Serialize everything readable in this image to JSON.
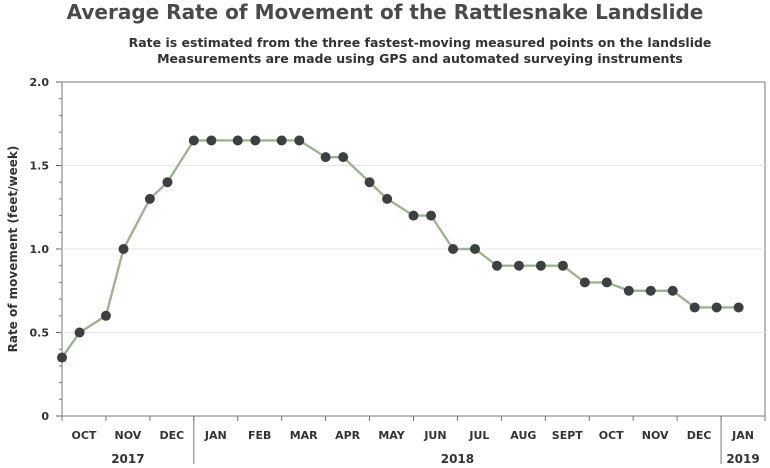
{
  "chart_data": {
    "type": "line",
    "title": "Average Rate of Movement of the Rattlesnake Landslide",
    "subtitles": [
      "Rate is estimated from the three fastest-moving measured points on the landslide",
      "Measurements are made using GPS and automated surveying instruments"
    ],
    "xlabel": "",
    "ylabel": "Rate of movement (feet/week)",
    "ylim": [
      0,
      2.0
    ],
    "yticks": [
      "0",
      "0.5",
      "1.0",
      "1.5",
      "2.0"
    ],
    "xlim": [
      0,
      16
    ],
    "month_labels": [
      {
        "label": "OCT",
        "pos": 0.5
      },
      {
        "label": "NOV",
        "pos": 1.5
      },
      {
        "label": "DEC",
        "pos": 2.5
      },
      {
        "label": "JAN",
        "pos": 3.5
      },
      {
        "label": "FEB",
        "pos": 4.5
      },
      {
        "label": "MAR",
        "pos": 5.5
      },
      {
        "label": "APR",
        "pos": 6.5
      },
      {
        "label": "MAY",
        "pos": 7.5
      },
      {
        "label": "JUN",
        "pos": 8.5
      },
      {
        "label": "JUL",
        "pos": 9.5
      },
      {
        "label": "AUG",
        "pos": 10.5
      },
      {
        "label": "SEPT",
        "pos": 11.5
      },
      {
        "label": "OCT",
        "pos": 12.5
      },
      {
        "label": "NOV",
        "pos": 13.5
      },
      {
        "label": "DEC",
        "pos": 14.5
      },
      {
        "label": "JAN",
        "pos": 15.5
      }
    ],
    "year_labels": [
      {
        "label": "2017",
        "from": 0,
        "to": 3
      },
      {
        "label": "2018",
        "from": 3,
        "to": 15
      },
      {
        "label": "2019",
        "from": 15,
        "to": 16
      }
    ],
    "grid": "horizontal",
    "series": [
      {
        "line_color": "#9fb394",
        "marker_color": "#3d3f40",
        "x": [
          0,
          0.4,
          1.0,
          1.4,
          2.0,
          2.4,
          3.0,
          3.4,
          4.0,
          4.4,
          5.0,
          5.4,
          6.0,
          6.4,
          7.0,
          7.4,
          8.0,
          8.4,
          8.9,
          9.4,
          9.9,
          10.4,
          10.9,
          11.4,
          11.9,
          12.4,
          12.9,
          13.4,
          13.9,
          14.4,
          14.9,
          15.4
        ],
        "y": [
          0.35,
          0.5,
          0.6,
          1.0,
          1.3,
          1.4,
          1.65,
          1.65,
          1.65,
          1.65,
          1.65,
          1.65,
          1.55,
          1.55,
          1.4,
          1.3,
          1.2,
          1.2,
          1.0,
          1.0,
          0.9,
          0.9,
          0.9,
          0.9,
          0.8,
          0.8,
          0.75,
          0.75,
          0.75,
          0.65,
          0.65,
          0.65
        ]
      }
    ]
  }
}
